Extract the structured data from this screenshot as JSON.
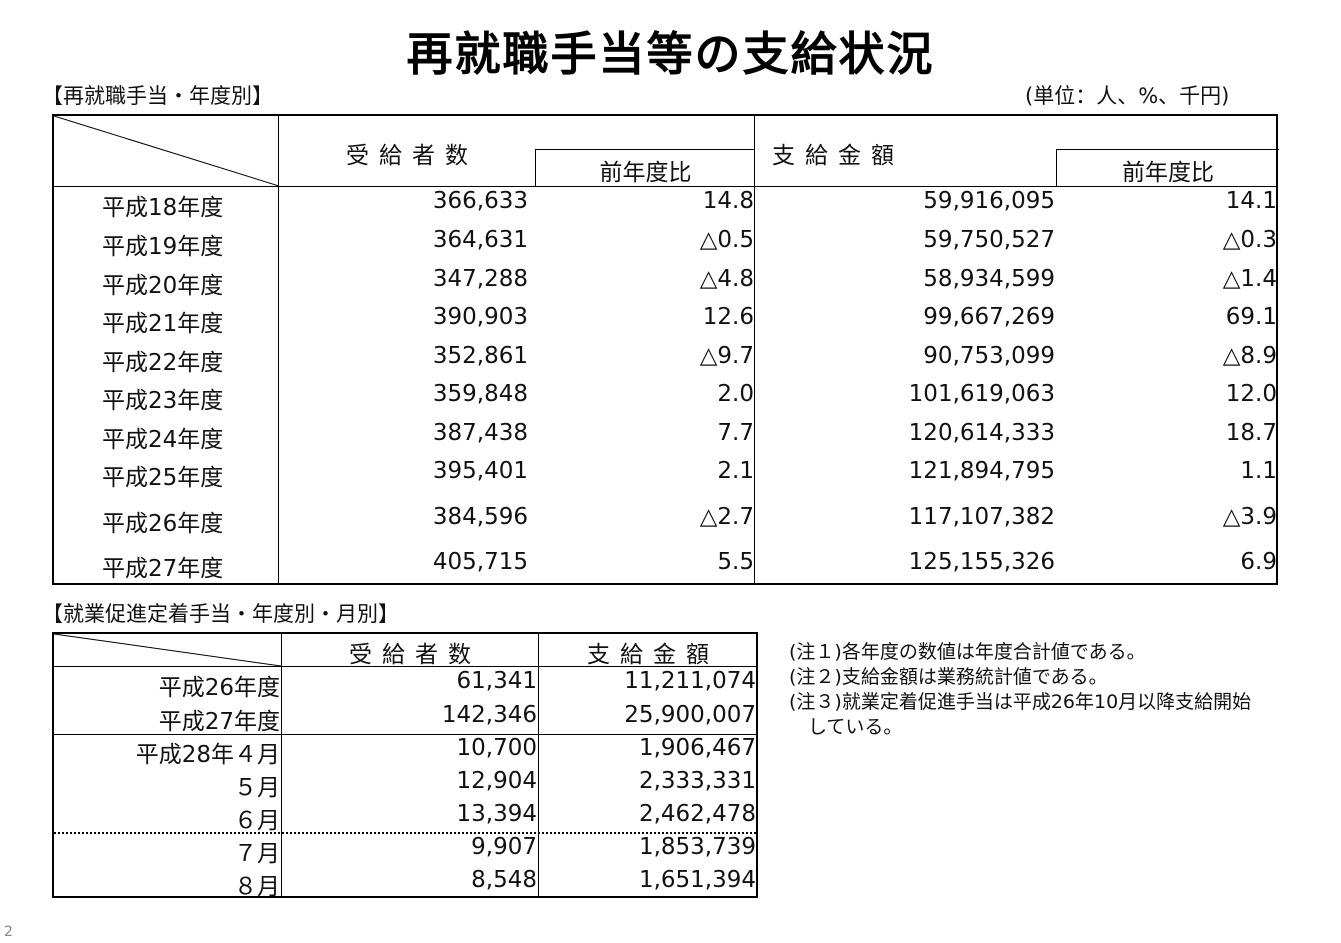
{
  "title": "再就職手当等の支給状況",
  "section1": {
    "label": "【再就職手当・年度別】",
    "unit": "(単位：人、%、千円)",
    "headers": {
      "recipients": "受給者数",
      "yoy": "前年度比",
      "amount": "支給金額",
      "yoy2": "前年度比"
    },
    "rows": [
      {
        "year": "平成18年度",
        "recipients": "366,633",
        "r_yoy": "14.8",
        "amount": "59,916,095",
        "a_yoy": "14.1"
      },
      {
        "year": "平成19年度",
        "recipients": "364,631",
        "r_yoy": "△0.5",
        "amount": "59,750,527",
        "a_yoy": "△0.3"
      },
      {
        "year": "平成20年度",
        "recipients": "347,288",
        "r_yoy": "△4.8",
        "amount": "58,934,599",
        "a_yoy": "△1.4"
      },
      {
        "year": "平成21年度",
        "recipients": "390,903",
        "r_yoy": "12.6",
        "amount": "99,667,269",
        "a_yoy": "69.1"
      },
      {
        "year": "平成22年度",
        "recipients": "352,861",
        "r_yoy": "△9.7",
        "amount": "90,753,099",
        "a_yoy": "△8.9"
      },
      {
        "year": "平成23年度",
        "recipients": "359,848",
        "r_yoy": "2.0",
        "amount": "101,619,063",
        "a_yoy": "12.0"
      },
      {
        "year": "平成24年度",
        "recipients": "387,438",
        "r_yoy": "7.7",
        "amount": "120,614,333",
        "a_yoy": "18.7"
      },
      {
        "year": "平成25年度",
        "recipients": "395,401",
        "r_yoy": "2.1",
        "amount": "121,894,795",
        "a_yoy": "1.1"
      },
      {
        "year": "平成26年度",
        "recipients": "384,596",
        "r_yoy": "△2.7",
        "amount": "117,107,382",
        "a_yoy": "△3.9"
      },
      {
        "year": "平成27年度",
        "recipients": "405,715",
        "r_yoy": "5.5",
        "amount": "125,155,326",
        "a_yoy": "6.9"
      }
    ]
  },
  "section2": {
    "label": "【就業促進定着手当・年度別・月別】",
    "headers": {
      "recipients": "受給者数",
      "amount": "支給金額"
    },
    "rows": [
      {
        "period": "平成26年度",
        "recipients": "61,341",
        "amount": "11,211,074"
      },
      {
        "period": "平成27年度",
        "recipients": "142,346",
        "amount": "25,900,007"
      },
      {
        "period": "平成28年４月",
        "recipients": "10,700",
        "amount": "1,906,467"
      },
      {
        "period": "５月",
        "recipients": "12,904",
        "amount": "2,333,331"
      },
      {
        "period": "６月",
        "recipients": "13,394",
        "amount": "2,462,478"
      },
      {
        "period": "７月",
        "recipients": "9,907",
        "amount": "1,853,739"
      },
      {
        "period": "８月",
        "recipients": "8,548",
        "amount": "1,651,394"
      }
    ]
  },
  "notes": [
    "(注１)各年度の数値は年度合計値である。",
    "(注２)支給金額は業務統計値である。",
    "(注３)就業定着促進手当は平成26年10月以降支給開始",
    "　している。"
  ],
  "page_number": "2"
}
